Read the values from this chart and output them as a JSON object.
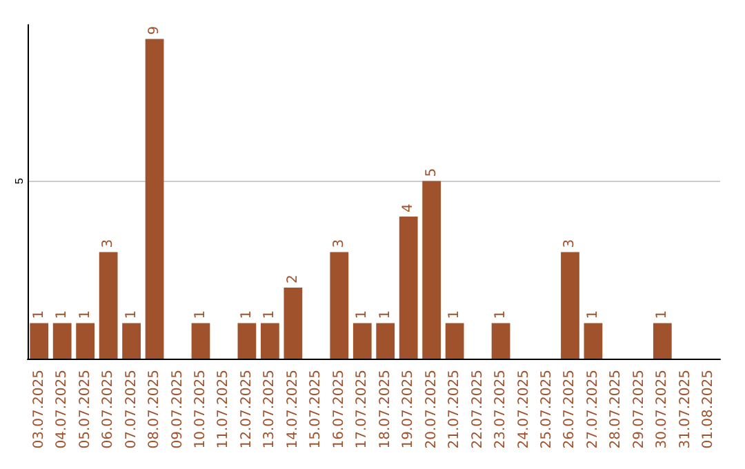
{
  "chart_data": {
    "type": "bar",
    "categories": [
      "03.07.2025",
      "04.07.2025",
      "05.07.2025",
      "06.07.2025",
      "07.07.2025",
      "08.07.2025",
      "09.07.2025",
      "10.07.2025",
      "11.07.2025",
      "12.07.2025",
      "13.07.2025",
      "14.07.2025",
      "15.07.2025",
      "16.07.2025",
      "17.07.2025",
      "18.07.2025",
      "19.07.2025",
      "20.07.2025",
      "21.07.2025",
      "22.07.2025",
      "23.07.2025",
      "24.07.2025",
      "25.07.2025",
      "26.07.2025",
      "27.07.2025",
      "28.07.2025",
      "29.07.2025",
      "30.07.2025",
      "31.07.2025",
      "01.08.2025"
    ],
    "values": [
      1,
      1,
      1,
      3,
      1,
      9,
      0,
      1,
      0,
      1,
      1,
      2,
      0,
      3,
      1,
      1,
      4,
      5,
      1,
      0,
      1,
      0,
      0,
      3,
      1,
      0,
      0,
      1,
      0,
      0
    ],
    "value_labels": [
      "1",
      "1",
      "1",
      "3",
      "1",
      "9",
      null,
      "1",
      null,
      "1",
      "1",
      "2",
      null,
      "3",
      "1",
      "1",
      "4",
      "5",
      "1",
      null,
      "1",
      null,
      null,
      "3",
      "1",
      null,
      null,
      "1",
      null,
      null
    ],
    "color": "#a0522d",
    "ylim": [
      0,
      9.4
    ],
    "yticks": [
      5
    ],
    "grid": "y"
  }
}
